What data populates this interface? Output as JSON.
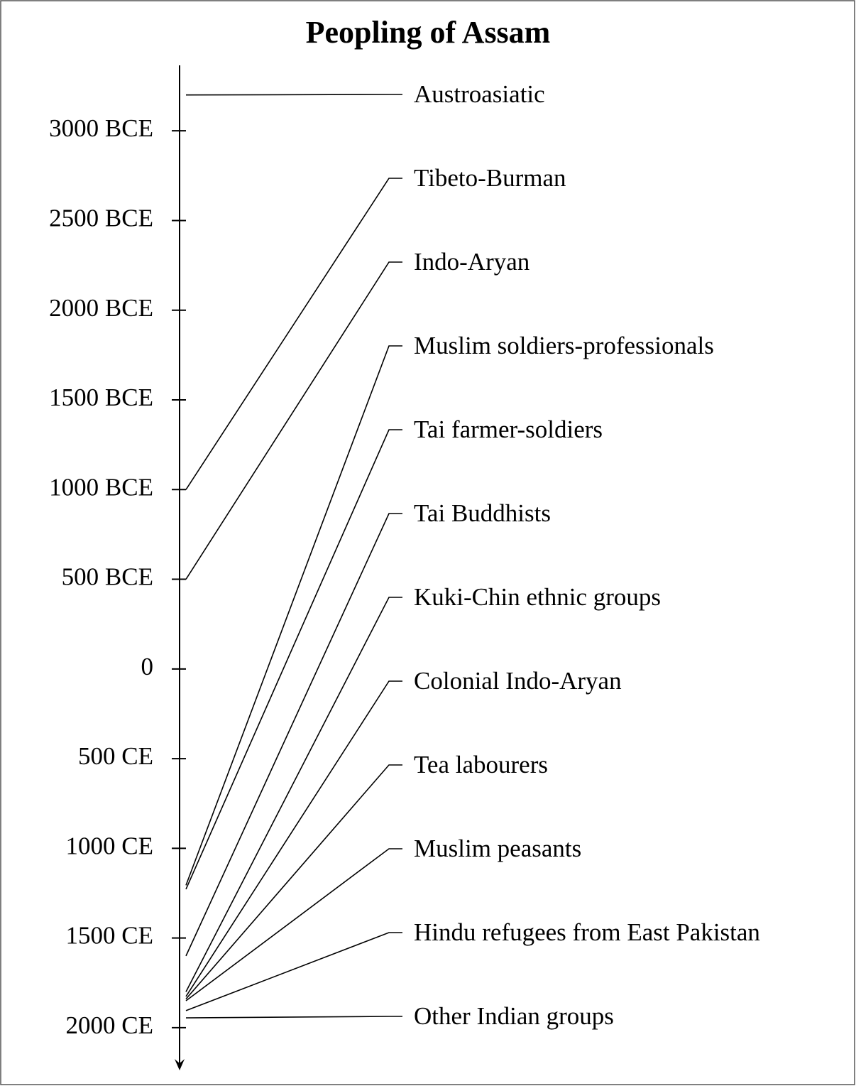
{
  "chart_data": {
    "type": "timeline",
    "title": "Peopling of Assam",
    "categories": [
      "Austroasiatic",
      "Tibeto-Burman",
      "Indo-Aryan",
      "Muslim soldiers-professionals",
      "Tai farmer-soldiers",
      "Tai Buddhists",
      "Kuki-Chin ethnic groups",
      "Colonial Indo-Aryan",
      "Tea labourers",
      "Muslim peasants",
      "Hindu refugees from East Pakistan",
      "Other Indian groups"
    ],
    "values": [
      -3200,
      -1000,
      -500,
      1206,
      1228,
      1600,
      1800,
      1826,
      1840,
      1850,
      1905,
      1945
    ],
    "ylim": [
      -3365,
      2230
    ],
    "yticks": [
      {
        "value": -3000,
        "label": "3000 BCE"
      },
      {
        "value": -2500,
        "label": "2500 BCE"
      },
      {
        "value": -2000,
        "label": "2000 BCE"
      },
      {
        "value": -1500,
        "label": "1500 BCE"
      },
      {
        "value": -1000,
        "label": "1000 BCE"
      },
      {
        "value": -500,
        "label": "500 BCE"
      },
      0,
      {
        "value": 500,
        "label": "500 CE"
      },
      {
        "value": 1000,
        "label": "1000 CE"
      },
      {
        "value": 1500,
        "label": "1500 CE"
      },
      {
        "value": 2000,
        "label": "2000 CE"
      }
    ],
    "color": "#000000"
  }
}
